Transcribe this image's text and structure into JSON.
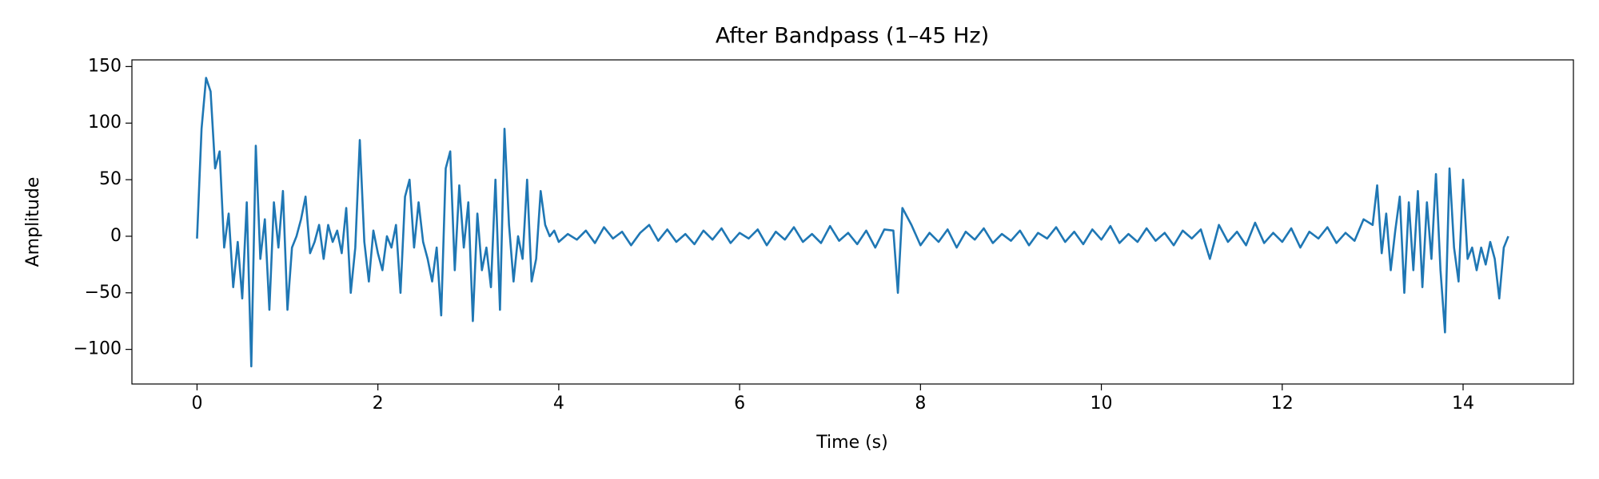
{
  "chart_data": {
    "type": "line",
    "title": "After Bandpass (1–45 Hz)",
    "xlabel": "Time (s)",
    "ylabel": "Amplitude",
    "color": "#1f77b4",
    "xlim": [
      -0.72,
      15.22
    ],
    "ylim": [
      -130.6,
      155.9
    ],
    "xticks": [
      0,
      2,
      4,
      6,
      8,
      10,
      12,
      14
    ],
    "yticks": [
      {
        "value": -100,
        "label": "−100"
      },
      {
        "value": -50,
        "label": "−50"
      },
      0,
      50,
      100,
      150
    ],
    "x": [
      0.0,
      0.05,
      0.1,
      0.15,
      0.2,
      0.25,
      0.3,
      0.35,
      0.4,
      0.45,
      0.5,
      0.55,
      0.6,
      0.65,
      0.7,
      0.75,
      0.8,
      0.85,
      0.9,
      0.95,
      1.0,
      1.05,
      1.1,
      1.15,
      1.2,
      1.25,
      1.3,
      1.35,
      1.4,
      1.45,
      1.5,
      1.55,
      1.6,
      1.65,
      1.7,
      1.75,
      1.8,
      1.85,
      1.9,
      1.95,
      2.0,
      2.05,
      2.1,
      2.15,
      2.2,
      2.25,
      2.3,
      2.35,
      2.4,
      2.45,
      2.5,
      2.55,
      2.6,
      2.65,
      2.7,
      2.75,
      2.8,
      2.85,
      2.9,
      2.95,
      3.0,
      3.05,
      3.1,
      3.15,
      3.2,
      3.25,
      3.3,
      3.35,
      3.4,
      3.45,
      3.5,
      3.55,
      3.6,
      3.65,
      3.7,
      3.75,
      3.8,
      3.85,
      3.9,
      3.95,
      4.0,
      4.1,
      4.2,
      4.3,
      4.4,
      4.5,
      4.6,
      4.7,
      4.8,
      4.9,
      5.0,
      5.1,
      5.2,
      5.3,
      5.4,
      5.5,
      5.6,
      5.7,
      5.8,
      5.9,
      6.0,
      6.1,
      6.2,
      6.3,
      6.4,
      6.5,
      6.6,
      6.7,
      6.8,
      6.9,
      7.0,
      7.1,
      7.2,
      7.3,
      7.4,
      7.5,
      7.6,
      7.7,
      7.75,
      7.8,
      7.9,
      8.0,
      8.1,
      8.2,
      8.3,
      8.4,
      8.5,
      8.6,
      8.7,
      8.8,
      8.9,
      9.0,
      9.1,
      9.2,
      9.3,
      9.4,
      9.5,
      9.6,
      9.7,
      9.8,
      9.9,
      10.0,
      10.1,
      10.2,
      10.3,
      10.4,
      10.5,
      10.6,
      10.7,
      10.8,
      10.9,
      11.0,
      11.1,
      11.2,
      11.3,
      11.4,
      11.5,
      11.6,
      11.7,
      11.8,
      11.9,
      12.0,
      12.1,
      12.2,
      12.3,
      12.4,
      12.5,
      12.6,
      12.7,
      12.8,
      12.9,
      13.0,
      13.05,
      13.1,
      13.15,
      13.2,
      13.25,
      13.3,
      13.35,
      13.4,
      13.45,
      13.5,
      13.55,
      13.6,
      13.65,
      13.7,
      13.75,
      13.8,
      13.85,
      13.9,
      13.95,
      14.0,
      14.05,
      14.1,
      14.15,
      14.2,
      14.25,
      14.3,
      14.35,
      14.4,
      14.45,
      14.5
    ],
    "values": [
      -2,
      95,
      140,
      128,
      60,
      75,
      -10,
      20,
      -45,
      -5,
      -55,
      30,
      -115,
      80,
      -20,
      15,
      -65,
      30,
      -10,
      40,
      -65,
      -10,
      0,
      15,
      35,
      -15,
      -5,
      10,
      -20,
      10,
      -5,
      5,
      -15,
      25,
      -50,
      -10,
      85,
      -5,
      -40,
      5,
      -15,
      -30,
      0,
      -10,
      10,
      -50,
      35,
      50,
      -10,
      30,
      -5,
      -20,
      -40,
      -10,
      -70,
      60,
      75,
      -30,
      45,
      -10,
      30,
      -75,
      20,
      -30,
      -10,
      -45,
      50,
      -65,
      95,
      10,
      -40,
      0,
      -20,
      50,
      -40,
      -20,
      40,
      10,
      0,
      5,
      -5,
      2,
      -3,
      5,
      -6,
      8,
      -2,
      4,
      -8,
      3,
      10,
      -4,
      6,
      -5,
      2,
      -7,
      5,
      -3,
      7,
      -6,
      3,
      -2,
      6,
      -8,
      4,
      -3,
      8,
      -5,
      2,
      -6,
      9,
      -4,
      3,
      -7,
      5,
      -10,
      6,
      5,
      -50,
      25,
      10,
      -8,
      3,
      -5,
      6,
      -10,
      4,
      -3,
      7,
      -6,
      2,
      -4,
      5,
      -8,
      3,
      -2,
      8,
      -5,
      4,
      -7,
      6,
      -3,
      9,
      -6,
      2,
      -5,
      7,
      -4,
      3,
      -8,
      5,
      -2,
      6,
      -20,
      10,
      -5,
      4,
      -8,
      12,
      -6,
      3,
      -5,
      7,
      -10,
      4,
      -2,
      8,
      -6,
      3,
      -4,
      15,
      10,
      45,
      -15,
      20,
      -30,
      5,
      35,
      -50,
      30,
      -30,
      40,
      -45,
      30,
      -20,
      55,
      -30,
      -85,
      60,
      -10,
      -40,
      50,
      -20,
      -10,
      -30,
      -10,
      -25,
      -5,
      -20,
      -55,
      -10,
      0
    ]
  }
}
